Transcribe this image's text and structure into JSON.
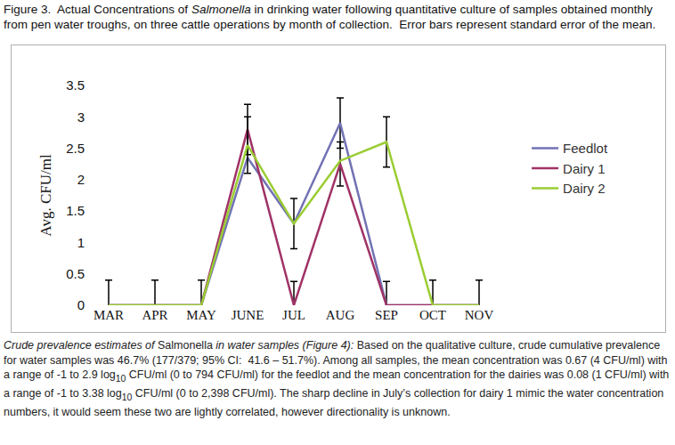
{
  "chart_data": {
    "type": "line",
    "title_parts": [
      {
        "text": "Figure 3.  Actual Concentrations of "
      },
      {
        "text": "Salmonella",
        "style": "italic"
      },
      {
        "text": " in drinking water following quantitative culture of samples obtained monthly from pen water troughs, on three cattle operations by month of collection.  Error bars represent standard error of the mean."
      }
    ],
    "y_label": "Avg. CFU/ml",
    "categories": [
      "MAR",
      "APR",
      "MAY",
      "JUNE",
      "JUL",
      "AUG",
      "SEP",
      "OCT",
      "NOV"
    ],
    "series": [
      {
        "name": "Feedlot",
        "color": "#7272b4",
        "values": [
          0,
          0,
          0,
          2.35,
          1.3,
          2.9,
          0,
          0,
          0
        ],
        "errors": [
          0.4,
          0.4,
          0.4,
          null,
          0.4,
          0.4,
          0.38,
          0.4,
          0.4
        ]
      },
      {
        "name": "Dairy 1",
        "color": "#a03266",
        "values": [
          0,
          0,
          0,
          2.8,
          0,
          2.25,
          0,
          0,
          0
        ],
        "errors": [
          null,
          null,
          null,
          0.4,
          0.38,
          0.35,
          null,
          null,
          null
        ]
      },
      {
        "name": "Dairy 2",
        "color": "#9acd32",
        "values": [
          0,
          0,
          0,
          2.55,
          1.3,
          2.3,
          2.6,
          0,
          0
        ],
        "errors": [
          null,
          null,
          null,
          0.45,
          null,
          null,
          0.4,
          null,
          null
        ]
      }
    ],
    "ylim": [
      0,
      3.5
    ],
    "yticks": [
      0,
      0.5,
      1,
      1.5,
      2,
      2.5,
      3,
      3.5
    ],
    "grid": false,
    "legend": "right"
  },
  "caption": {
    "parts": [
      {
        "text": "Crude prevalence estimates of ",
        "style": "italic"
      },
      {
        "text": "Salmonella"
      },
      {
        "text": " in water samples (Figure 4):",
        "style": "italic"
      },
      {
        "text": " Based on the qualitative culture, crude cumulative prevalence for water samples was 46.7% (177/379; 95% CI:  41.6 – 51.7%). Among all samples, the mean concentration was 0.67 (4 CFU/ml) with a range of -1 to 2.9 log"
      },
      {
        "text": "10",
        "style": "sub"
      },
      {
        "text": " CFU/ml (0 to 794 CFU/ml) for the feedlot and the mean concentration for the dairies was 0.08 (1 CFU/ml) with a range of -1 to 3.38 log"
      },
      {
        "text": "10",
        "style": "sub"
      },
      {
        "text": " CFU/ml (0 to 2,398 CFU/ml). The sharp decline in July’s collection for dairy 1 mimic the water concentration numbers, it would seem these two are lightly correlated, however directionality is unknown."
      }
    ]
  }
}
